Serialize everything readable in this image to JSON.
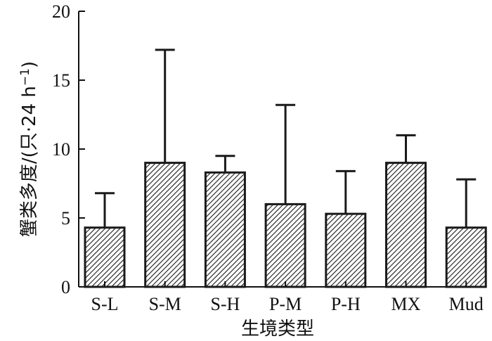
{
  "chart_data": {
    "type": "bar",
    "categories": [
      "S-L",
      "S-M",
      "S-H",
      "P-M",
      "P-H",
      "MX",
      "Mud"
    ],
    "values": [
      4.3,
      9.0,
      8.3,
      6.0,
      5.3,
      9.0,
      4.3
    ],
    "error_upper": [
      6.8,
      17.2,
      9.5,
      13.2,
      8.4,
      11.0,
      7.8
    ],
    "xlabel": "生境类型",
    "ylabel": "蟹类多度/(只·24 h",
    "ylabel_superscript": "−1",
    "ylabel_close": ")",
    "ylim": [
      0,
      20
    ],
    "yticks": [
      0,
      5,
      10,
      15,
      20
    ],
    "bar_fill": "hatched",
    "bar_color": "#1a1a1a",
    "grid": false,
    "legend": "none"
  }
}
